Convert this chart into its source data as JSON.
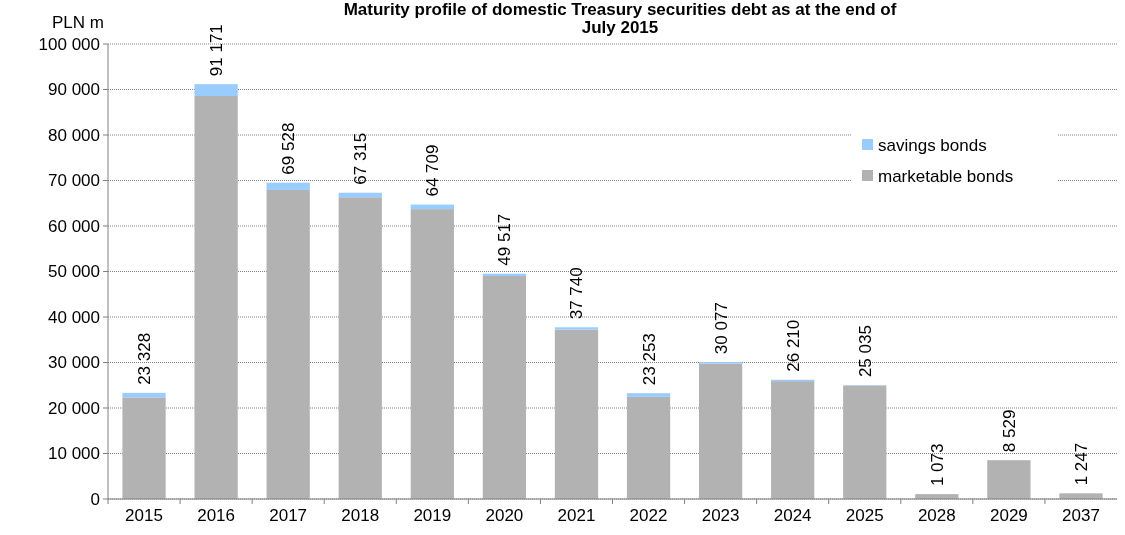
{
  "chart_data": {
    "type": "bar",
    "title": "Maturity profile of domestic Treasury securities debt as at the end of July 2015",
    "ylabel": "PLN m",
    "stacked": true,
    "legend": "top right",
    "grid": "y",
    "categories": [
      "2015",
      "2016",
      "2017",
      "2018",
      "2019",
      "2020",
      "2021",
      "2022",
      "2023",
      "2024",
      "2025",
      "2028",
      "2029",
      "2037"
    ],
    "series": [
      {
        "name": "marketable bonds",
        "color": "#b2b2b2",
        "values": [
          22328,
          88571,
          67928,
          66315,
          63709,
          49017,
          37240,
          22453,
          29777,
          25910,
          24935,
          1073,
          8529,
          1247
        ]
      },
      {
        "name": "savings bonds",
        "color": "#99ccff",
        "values": [
          1000,
          2600,
          1600,
          1000,
          1000,
          500,
          500,
          800,
          300,
          300,
          100,
          0,
          0,
          0
        ]
      }
    ],
    "totals": [
      "23 328",
      "91 171",
      "69 528",
      "67 315",
      "64 709",
      "49 517",
      "37 740",
      "23 253",
      "30 077",
      "26 210",
      "25 035",
      "1 073",
      "8 529",
      "1 247"
    ],
    "ylim": [
      0,
      100000
    ],
    "yticks": [
      0,
      {
        "value": 10000,
        "label": "10 000"
      },
      {
        "value": 20000,
        "label": "20 000"
      },
      {
        "value": 30000,
        "label": "30 000"
      },
      {
        "value": 40000,
        "label": "40 000"
      },
      {
        "value": 50000,
        "label": "50 000"
      },
      {
        "value": 60000,
        "label": "60 000"
      },
      {
        "value": 70000,
        "label": "70 000"
      },
      {
        "value": 80000,
        "label": "80 000"
      },
      {
        "value": 90000,
        "label": "90 000"
      },
      {
        "value": 100000,
        "label": "100 000"
      }
    ]
  }
}
